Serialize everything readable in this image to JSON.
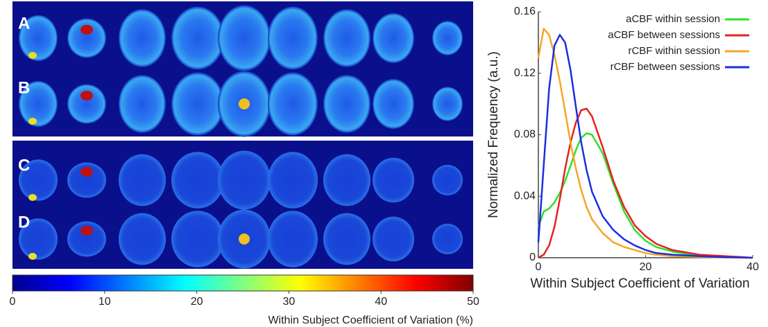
{
  "figure": {
    "panel_labels": [
      "A",
      "B",
      "C",
      "D"
    ]
  },
  "chart_data": [
    {
      "type": "colorbar",
      "xlabel": "Within Subject Coefficient of Variation (%)",
      "xlim": [
        0,
        50
      ],
      "xticks": [
        0,
        10,
        20,
        30,
        40,
        50
      ],
      "colormap": "jet"
    },
    {
      "type": "line",
      "xlabel": "Within Subject Coefficient of Variation",
      "ylabel": "Normalized Frequency (a.u.)",
      "x": [
        0,
        1,
        2,
        3,
        4,
        5,
        6,
        7,
        8,
        9,
        10,
        12,
        14,
        16,
        18,
        20,
        22,
        25,
        30,
        35,
        40
      ],
      "xlim": [
        0,
        40
      ],
      "xticks": [
        0,
        20,
        40
      ],
      "ylim": [
        0,
        0.16
      ],
      "yticks": [
        0,
        0.04,
        0.08,
        0.12,
        0.16
      ],
      "grid": false,
      "legend": "upper right",
      "series": [
        {
          "name": "aCBF within session",
          "color": "#2ee02e",
          "values": [
            0.02,
            0.03,
            0.032,
            0.036,
            0.042,
            0.05,
            0.06,
            0.07,
            0.078,
            0.081,
            0.08,
            0.068,
            0.048,
            0.03,
            0.018,
            0.011,
            0.007,
            0.004,
            0.001,
            0.0003,
            0
          ]
        },
        {
          "name": "aCBF between sessions",
          "color": "#e82020",
          "values": [
            0,
            0.002,
            0.008,
            0.02,
            0.038,
            0.058,
            0.075,
            0.088,
            0.096,
            0.097,
            0.092,
            0.072,
            0.05,
            0.033,
            0.021,
            0.014,
            0.009,
            0.005,
            0.002,
            0.001,
            0
          ]
        },
        {
          "name": "rCBF within session",
          "color": "#f5a623",
          "values": [
            0.13,
            0.149,
            0.145,
            0.132,
            0.115,
            0.095,
            0.075,
            0.058,
            0.044,
            0.033,
            0.025,
            0.016,
            0.01,
            0.007,
            0.005,
            0.003,
            0.002,
            0.001,
            0.0005,
            0.0002,
            0
          ]
        },
        {
          "name": "rCBF between sessions",
          "color": "#1a2ee0",
          "values": [
            0.01,
            0.06,
            0.11,
            0.138,
            0.145,
            0.14,
            0.122,
            0.098,
            0.075,
            0.057,
            0.043,
            0.027,
            0.018,
            0.012,
            0.008,
            0.005,
            0.003,
            0.002,
            0.001,
            0.0003,
            0
          ]
        }
      ]
    }
  ]
}
